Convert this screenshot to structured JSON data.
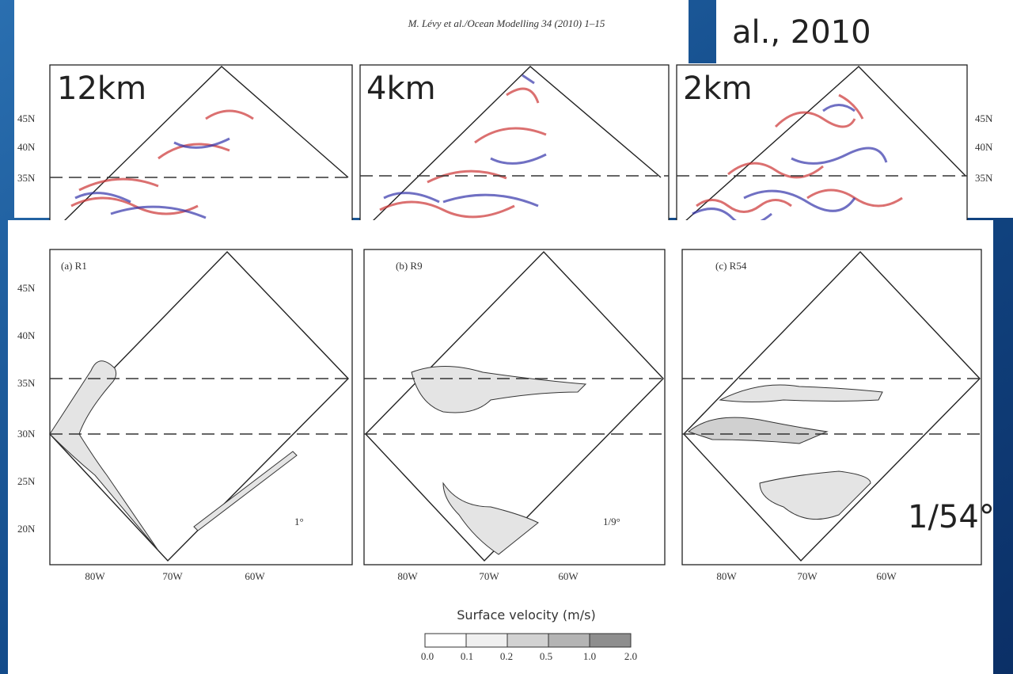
{
  "citation": "al., 2010",
  "top_figure": {
    "header": "M. Lévy et al./Ocean Modelling 34 (2010) 1–15",
    "panels": [
      "12km",
      "4km",
      "2km"
    ],
    "lat_labels": [
      "45N",
      "40N",
      "35N"
    ]
  },
  "bottom_figure": {
    "panels": [
      {
        "label": "(a) R1",
        "resolution": "1°"
      },
      {
        "label": "(b) R9",
        "resolution": "1/9°"
      },
      {
        "label": "(c) R54",
        "resolution": "1/54°"
      }
    ],
    "lat_labels": [
      "45N",
      "40N",
      "35N",
      "30N",
      "25N",
      "20N"
    ],
    "lon_labels": [
      "80W",
      "70W",
      "60W"
    ],
    "colorbar": {
      "title": "Surface velocity (m/s)",
      "labels": [
        "0.0",
        "0.1",
        "0.2",
        "0.5",
        "1.0",
        "2.0"
      ]
    }
  }
}
